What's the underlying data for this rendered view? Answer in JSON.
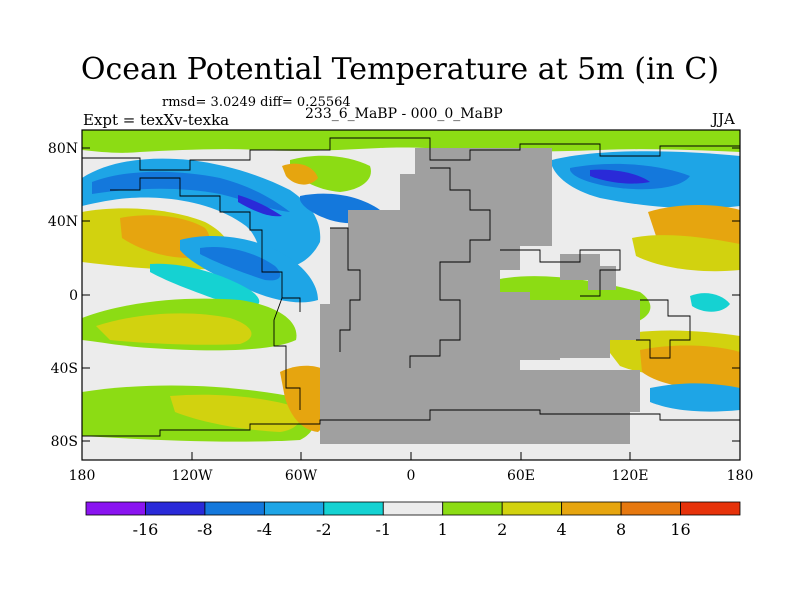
{
  "title": "Ocean Potential Temperature at 5m (in C)",
  "stats": "rmsd= 3.0249 diff= 0.25564",
  "experiment": "Expt = texXv-texka",
  "difference": "233_6_MaBP - 000_0_MaBP",
  "season": "JJA",
  "y_ticks": [
    "80N",
    "40N",
    "0",
    "40S",
    "80S"
  ],
  "x_ticks": [
    "180",
    "120W",
    "60W",
    "0",
    "60E",
    "120E",
    "180"
  ],
  "colorbar": {
    "labels": [
      "-16",
      "-8",
      "-4",
      "-2",
      "-1",
      "1",
      "2",
      "4",
      "8",
      "16"
    ],
    "colors": [
      "#8a14f0",
      "#2a2ad8",
      "#1478dc",
      "#1ea5e6",
      "#15d2d2",
      "#ececec",
      "#8cdc14",
      "#d2d20f",
      "#e6a50f",
      "#e6780f",
      "#e6320a"
    ]
  },
  "land_color": "#a0a0a0",
  "palette": {
    "neutral": "#ececec",
    "cyan": "#15d2d2",
    "lightblue": "#1ea5e6",
    "blue": "#1478dc",
    "darkblue": "#2a2ad8",
    "green": "#8cdc14",
    "yellow": "#d2d20f",
    "orange": "#e6a50f"
  }
}
